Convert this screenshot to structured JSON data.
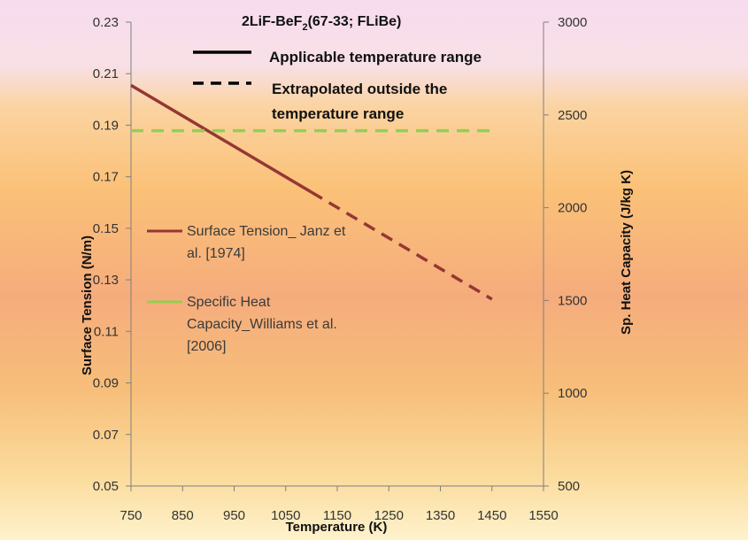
{
  "chart_data": {
    "type": "line",
    "title": {
      "main": "2LiF-BeF",
      "subscript": "2",
      "rest": "(67-33; FLiBe)"
    },
    "xlabel": "Temperature (K)",
    "ylabel": "Surface Tension (N/m)",
    "y2label": "Sp. Heat Capacity (J/kg K)",
    "xlim": [
      750,
      1550
    ],
    "ylim": [
      0.05,
      0.23
    ],
    "y2lim": [
      500,
      3000
    ],
    "x_ticks": [
      "750",
      "850",
      "950",
      "1050",
      "1150",
      "1250",
      "1350",
      "1450",
      "1550"
    ],
    "y_ticks": [
      "0.05",
      "0.07",
      "0.09",
      "0.11",
      "0.13",
      "0.15",
      "0.17",
      "0.19",
      "0.21",
      "0.23"
    ],
    "y2_ticks": [
      "500",
      "1000",
      "1500",
      "2000",
      "2500",
      "3000"
    ],
    "grid": false,
    "line_style_notes": {
      "solid": "Applicable temperature range",
      "dashed_line1": "Extrapolated outside the",
      "dashed_line2": "temperature range"
    },
    "series": [
      {
        "name_lines": [
          "Surface Tension_ Janz et",
          "al. [1974]"
        ],
        "axis": "left",
        "color": "#953735",
        "applicable": [
          [
            750,
            0.2055
          ],
          [
            1100,
            0.164
          ]
        ],
        "extrapolated": [
          [
            1100,
            0.164
          ],
          [
            1450,
            0.1225
          ]
        ]
      },
      {
        "name_lines": [
          "Specific Heat",
          "Capacity_Williams et al.",
          "[2006]"
        ],
        "axis": "right",
        "color": "#92d050",
        "applicable": [
          [
            750,
            2415
          ],
          [
            1450,
            2415
          ]
        ],
        "extrapolated": []
      }
    ]
  }
}
